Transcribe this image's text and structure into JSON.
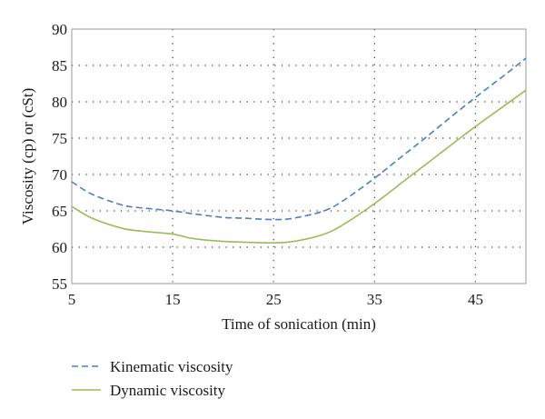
{
  "chart_data": {
    "type": "line",
    "title": "",
    "xlabel": "Time of sonication (min)",
    "ylabel": "Viscosity (cp) or (cSt)",
    "xlim": [
      5,
      50
    ],
    "ylim": [
      55,
      90
    ],
    "xticks": [
      5,
      15,
      25,
      35,
      45
    ],
    "yticks": [
      55,
      60,
      65,
      70,
      75,
      80,
      85,
      90
    ],
    "grid": true,
    "legend_position": "bottom-left",
    "series": [
      {
        "name": "Kinematic viscosity",
        "color": "#4a7fc1",
        "style": "dashed",
        "x": [
          5,
          7,
          10,
          12,
          15,
          17,
          20,
          22,
          25,
          27,
          30,
          32,
          35,
          38,
          40,
          43,
          45,
          48,
          50
        ],
        "y": [
          69,
          67.3,
          65.8,
          65.4,
          65,
          64.6,
          64.1,
          64,
          63.8,
          64,
          65,
          66.5,
          69.5,
          72.8,
          75,
          78.4,
          80.6,
          83.8,
          86
        ]
      },
      {
        "name": "Dynamic viscosity",
        "color": "#9bbb59",
        "style": "solid",
        "x": [
          5,
          7,
          10,
          12,
          15,
          17,
          20,
          22,
          25,
          27,
          30,
          32,
          35,
          38,
          40,
          43,
          45,
          48,
          50
        ],
        "y": [
          65.6,
          64,
          62.6,
          62.2,
          61.8,
          61.2,
          60.8,
          60.7,
          60.6,
          60.8,
          61.8,
          63.2,
          66,
          69.2,
          71.3,
          74.5,
          76.6,
          79.6,
          81.6
        ]
      }
    ]
  }
}
